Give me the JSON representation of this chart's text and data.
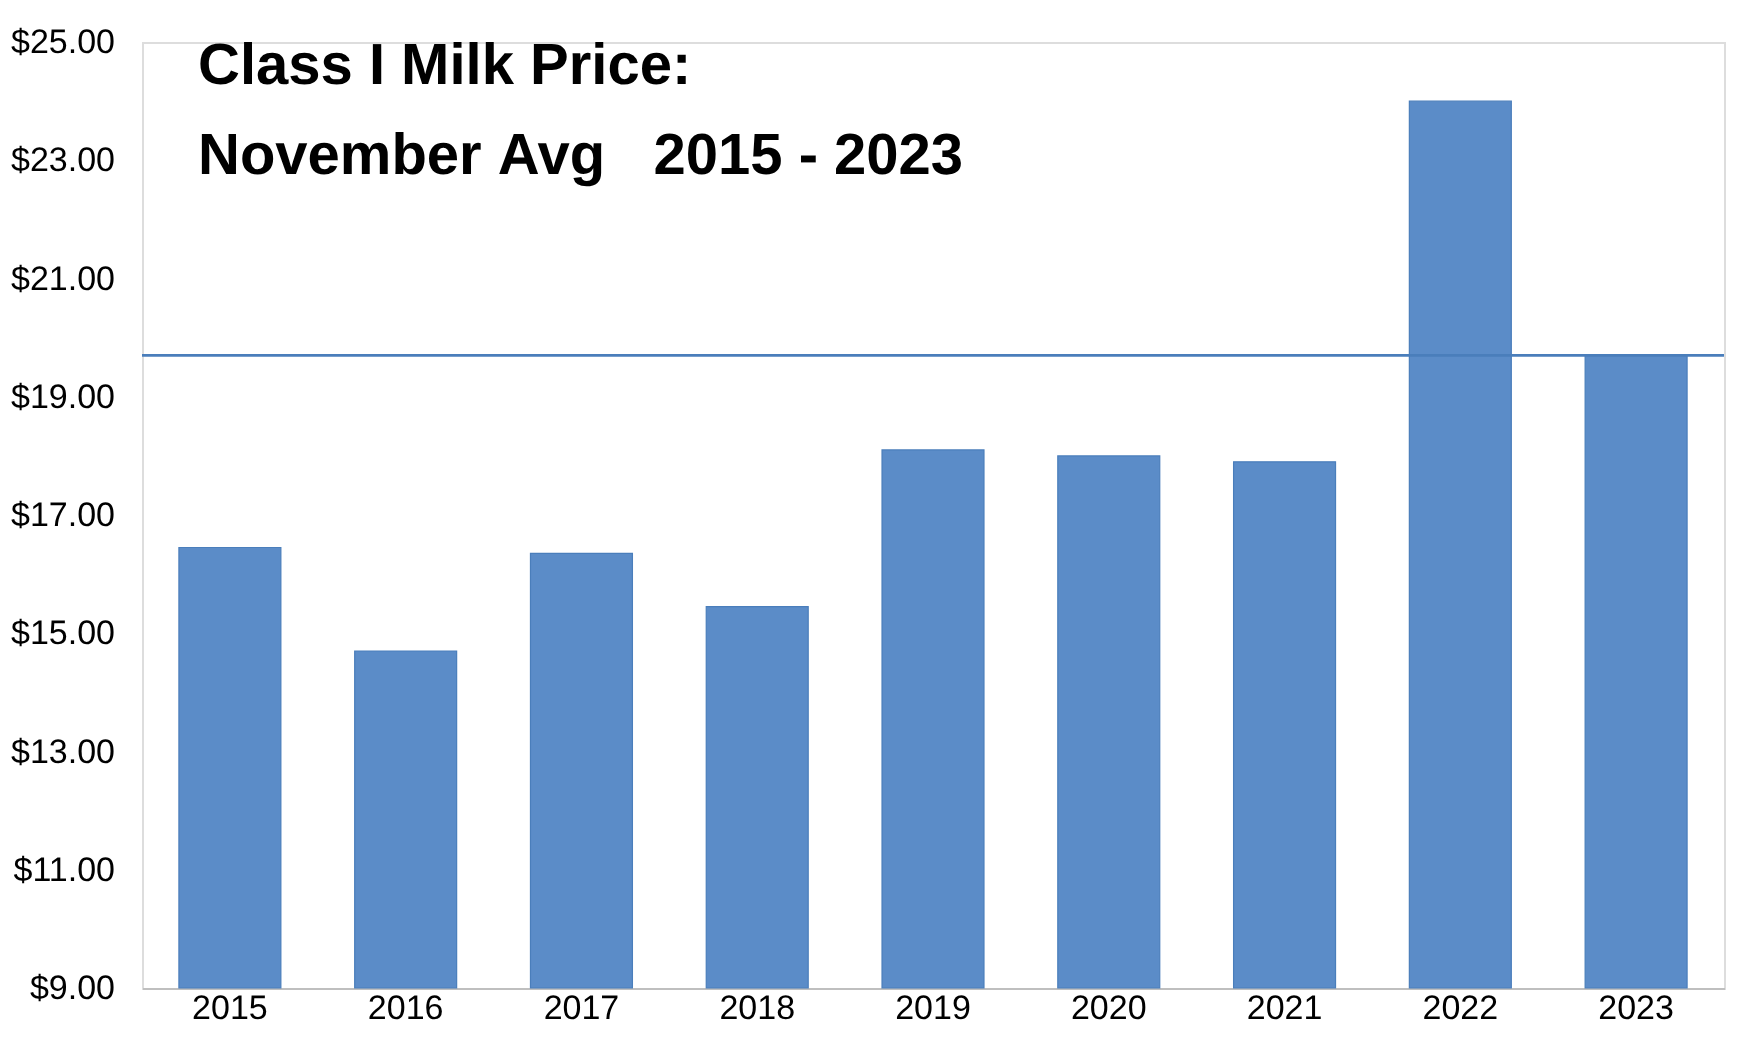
{
  "chart_data": {
    "type": "bar",
    "title": "Class I Milk Price:\nNovember Avg   2015 - 2023",
    "categories": [
      "2015",
      "2016",
      "2017",
      "2018",
      "2019",
      "2020",
      "2021",
      "2022",
      "2023"
    ],
    "values": [
      16.45,
      14.7,
      16.35,
      15.45,
      18.1,
      18.0,
      17.9,
      24.0,
      19.7
    ],
    "color": "#5b8cc8",
    "ylim": [
      9,
      25
    ],
    "yticks": [
      {
        "value": 9,
        "label": "$9.00"
      },
      {
        "value": 11,
        "label": "$11.00"
      },
      {
        "value": 13,
        "label": "$13.00"
      },
      {
        "value": 15,
        "label": "$15.00"
      },
      {
        "value": 17,
        "label": "$17.00"
      },
      {
        "value": 19,
        "label": "$19.00"
      },
      {
        "value": 21,
        "label": "$21.00"
      },
      {
        "value": 23,
        "label": "$23.00"
      },
      {
        "value": 25,
        "label": "$25.00"
      }
    ],
    "ref_lines": [
      {
        "axis": "y",
        "value": 19.7,
        "color": "#4a7ebb"
      }
    ],
    "grid": false
  }
}
